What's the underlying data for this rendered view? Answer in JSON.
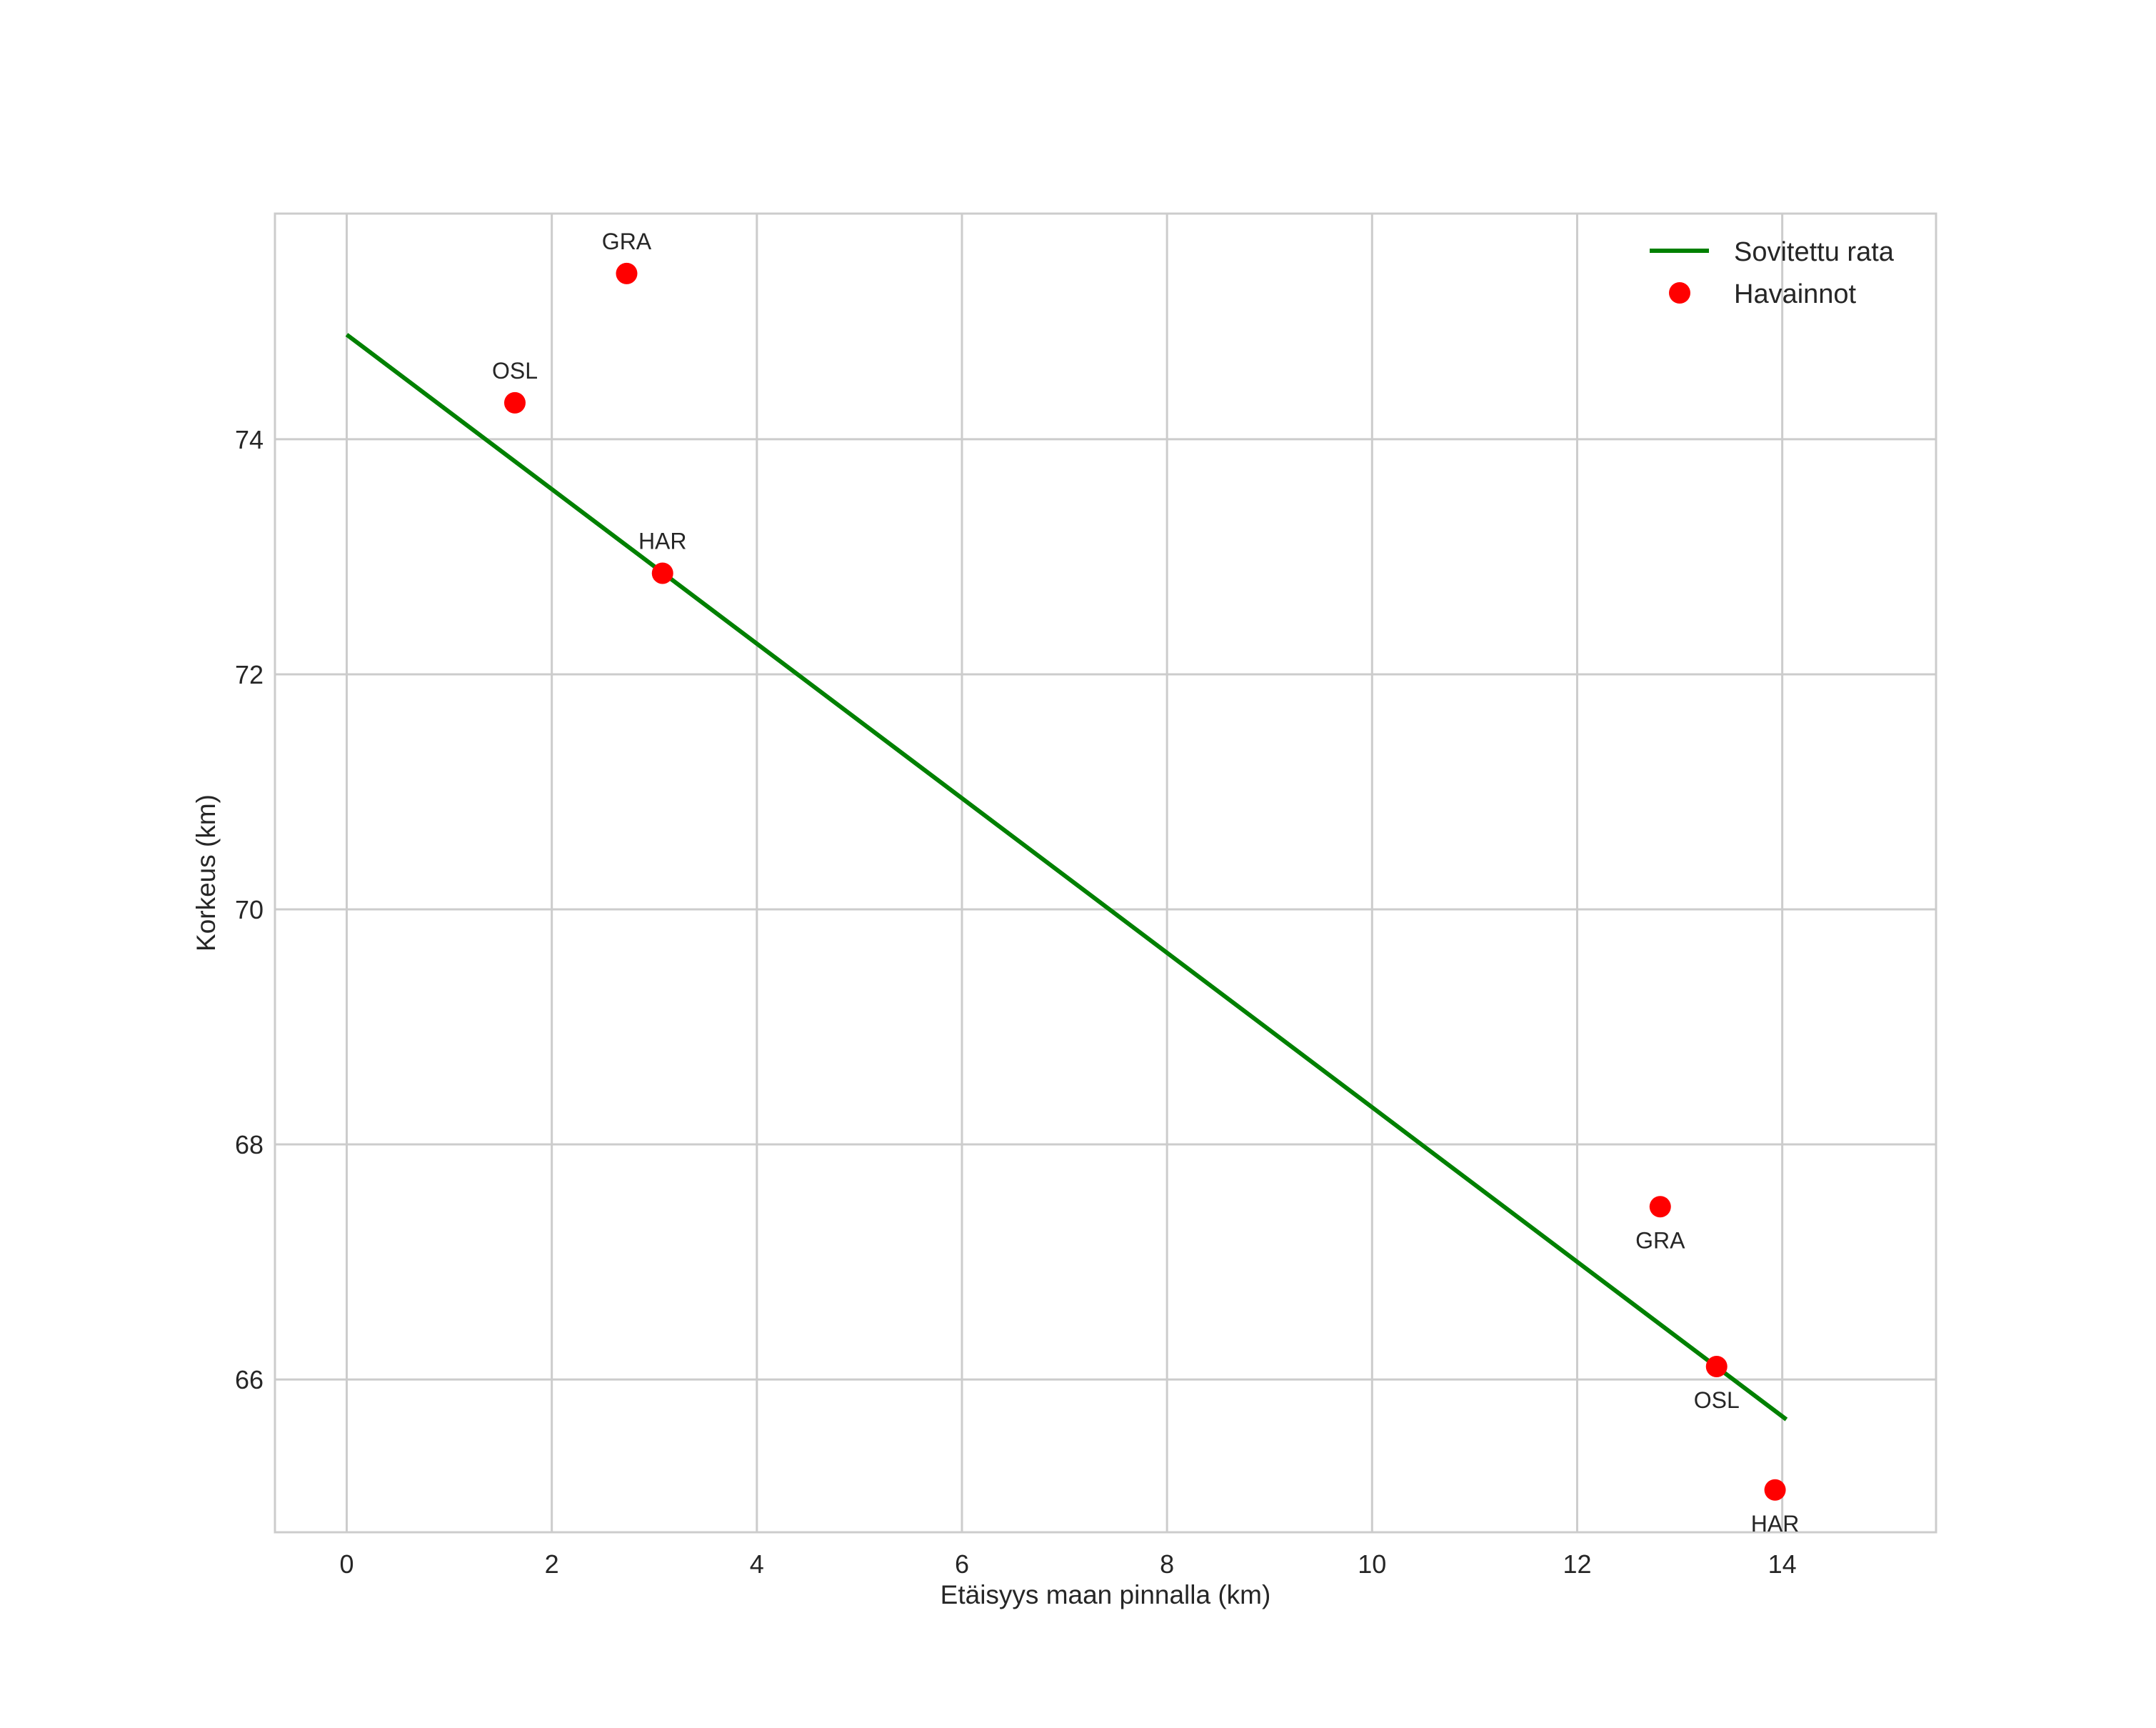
{
  "chart_data": {
    "type": "scatter",
    "title": "",
    "xlabel": "Etäisyys maan pinnalla (km)",
    "ylabel": "Korkeus (km)",
    "xlim": [
      -0.7,
      15.5
    ],
    "ylim": [
      64.7,
      75.92
    ],
    "xticks": [
      0,
      2,
      4,
      6,
      8,
      10,
      12,
      14
    ],
    "yticks": [
      66,
      68,
      70,
      72,
      74
    ],
    "grid": true,
    "legend_position": "upper right",
    "series": [
      {
        "name": "Sovitettu rata",
        "kind": "line",
        "color": "#008000",
        "x": [
          0.0,
          14.04
        ],
        "y": [
          74.89,
          65.66
        ]
      },
      {
        "name": "Havainnot",
        "kind": "scatter",
        "color": "#ff0000",
        "points": [
          {
            "label": "OSL",
            "x": 1.64,
            "y": 74.31,
            "label_pos": "above"
          },
          {
            "label": "GRA",
            "x": 2.73,
            "y": 75.41,
            "label_pos": "above"
          },
          {
            "label": "HAR",
            "x": 3.08,
            "y": 72.86,
            "label_pos": "above"
          },
          {
            "label": "GRA",
            "x": 12.81,
            "y": 67.47,
            "label_pos": "below"
          },
          {
            "label": "OSL",
            "x": 13.36,
            "y": 66.11,
            "label_pos": "below"
          },
          {
            "label": "HAR",
            "x": 13.93,
            "y": 65.06,
            "label_pos": "below"
          }
        ]
      }
    ]
  },
  "legend": {
    "items": [
      {
        "label": "Sovitettu rata",
        "icon": "line-swatch",
        "color": "#008000"
      },
      {
        "label": "Havainnot",
        "icon": "dot-swatch",
        "color": "#ff0000"
      }
    ]
  },
  "style": {
    "grid_color": "#cccccc",
    "frame_color": "#cccccc",
    "text_color": "#262626"
  }
}
